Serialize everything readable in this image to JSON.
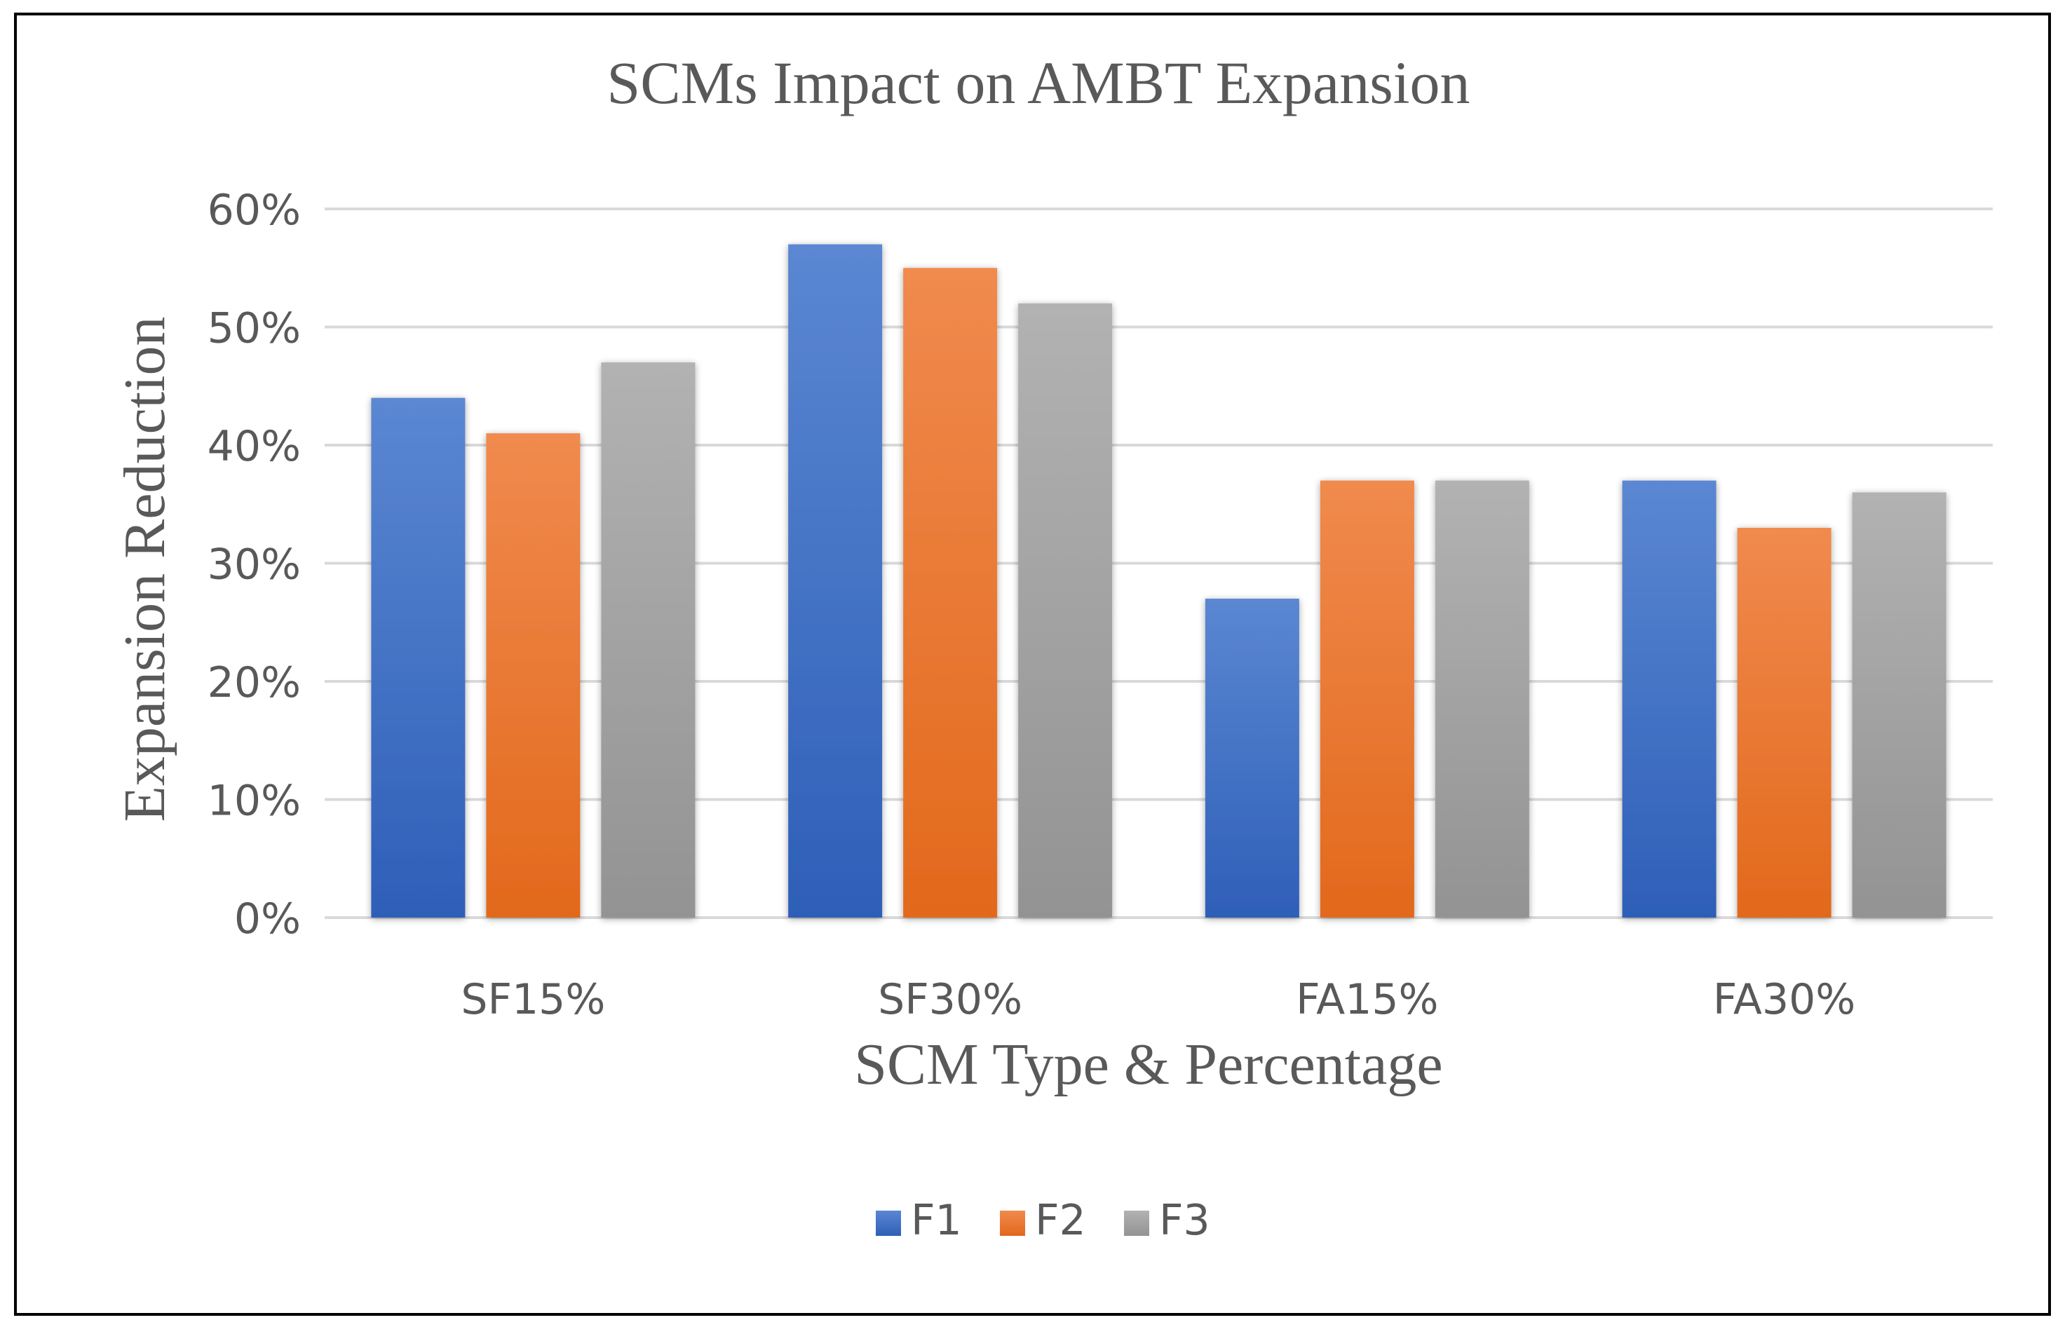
{
  "chart_data": {
    "type": "bar",
    "title": "SCMs Impact on AMBT Expansion",
    "xlabel": "SCM Type & Percentage",
    "ylabel": "Expansion Reduction",
    "categories": [
      "SF15%",
      "SF30%",
      "FA15%",
      "FA30%"
    ],
    "series": [
      {
        "name": "F1",
        "values": [
          44,
          57,
          27,
          37
        ],
        "color": "#4472C4"
      },
      {
        "name": "F2",
        "values": [
          41,
          55,
          37,
          33
        ],
        "color": "#ED7D31"
      },
      {
        "name": "F3",
        "values": [
          47,
          52,
          37,
          36
        ],
        "color": "#A5A5A5"
      }
    ],
    "ylim": [
      0,
      60
    ],
    "yticks": [
      "0%",
      "10%",
      "20%",
      "30%",
      "40%",
      "50%",
      "60%"
    ],
    "ytick_values": [
      0,
      10,
      20,
      30,
      40,
      50,
      60
    ],
    "grid": true,
    "legend": "bottom-center"
  }
}
